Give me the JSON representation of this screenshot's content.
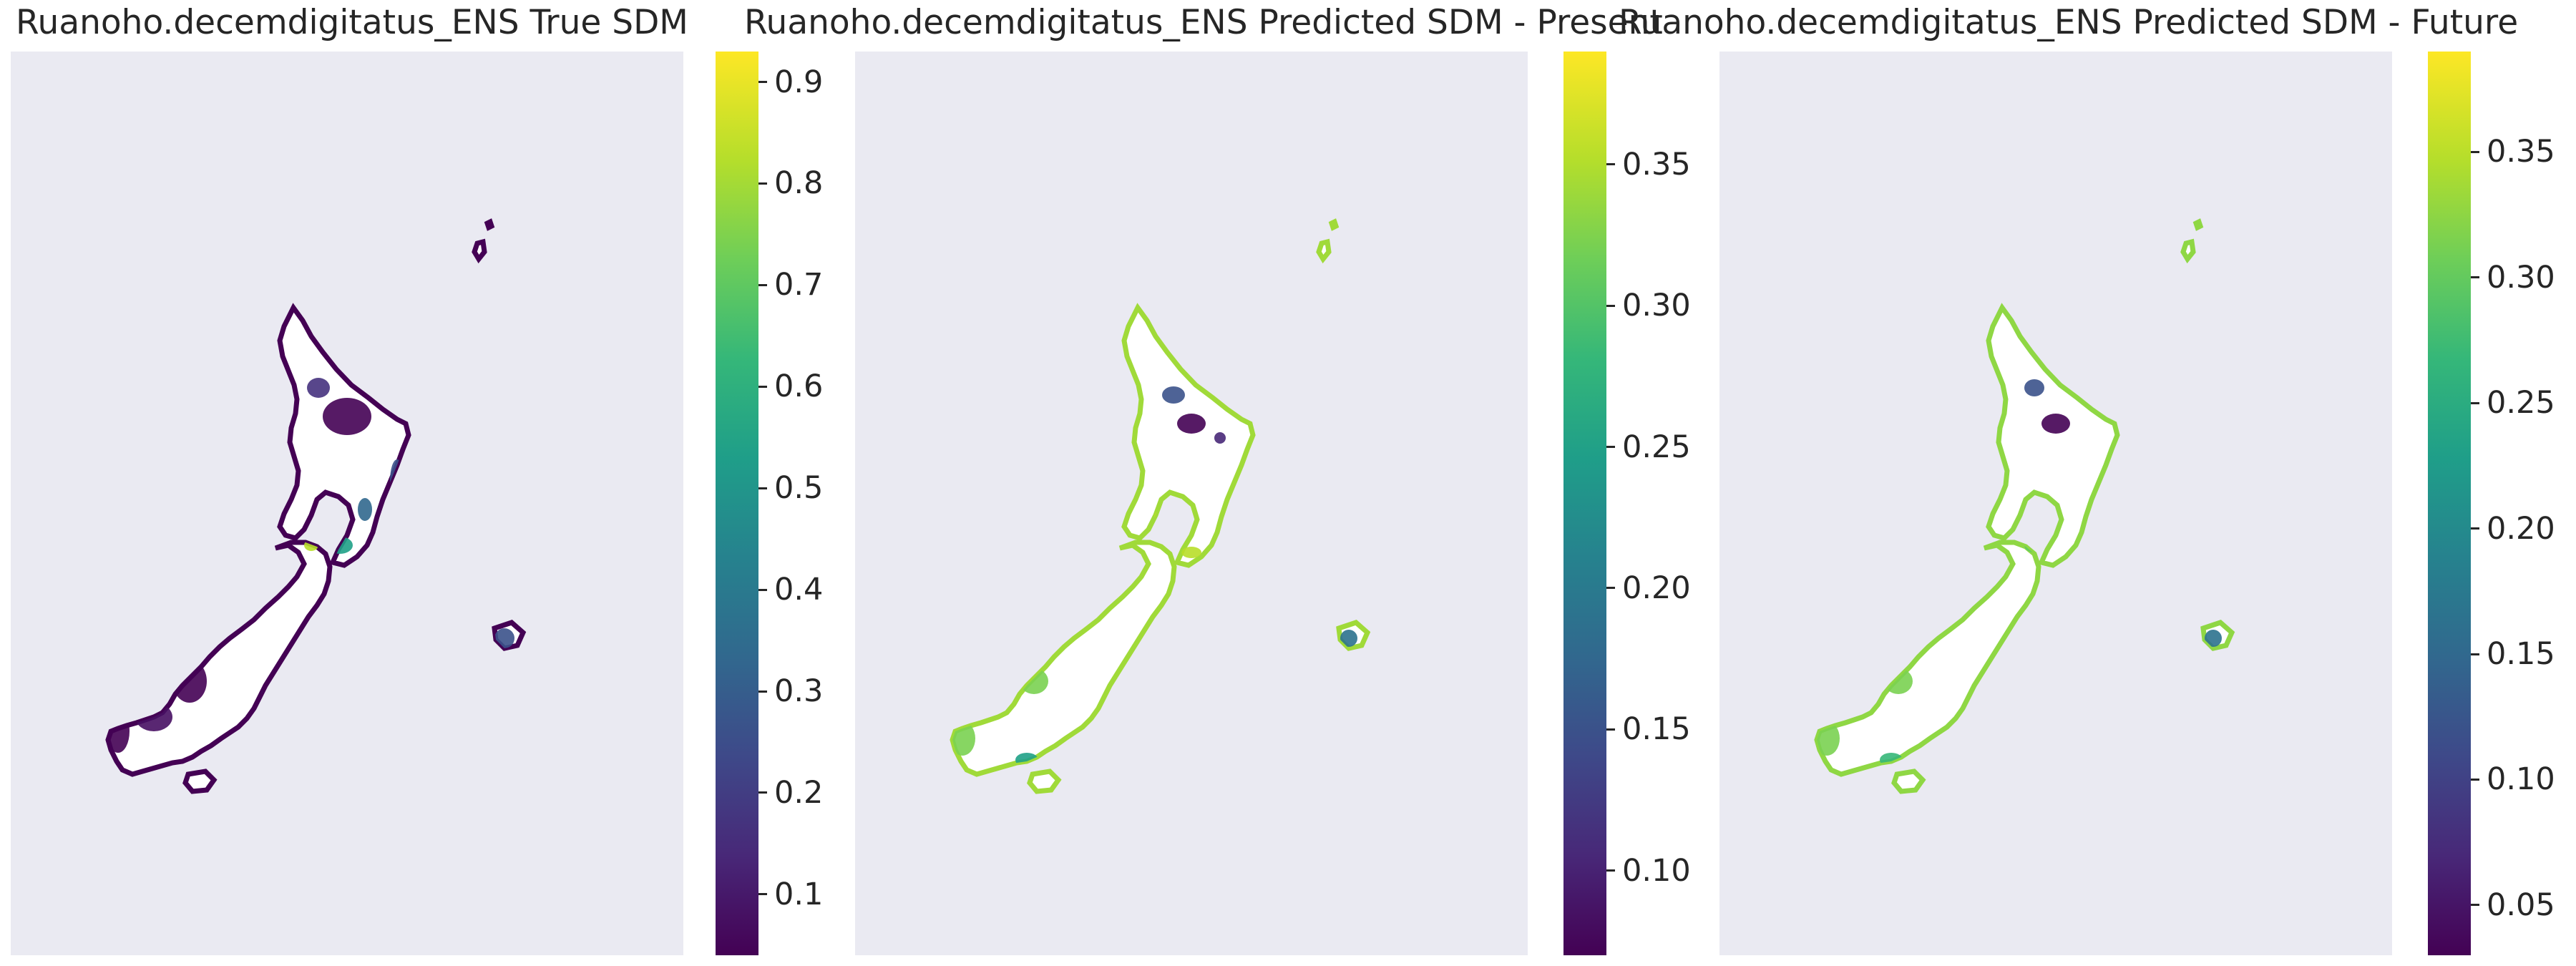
{
  "colormap": "viridis",
  "colors": {
    "map_background": "#eaeaf2",
    "low": "#440154",
    "mid": "#21918c",
    "high": "#fde725"
  },
  "panels": [
    {
      "title": "Ruanoho.decemdigitatus_ENS True SDM",
      "colorbar": {
        "min": 0.04,
        "max": 0.93,
        "ticks": [
          0.1,
          0.2,
          0.3,
          0.4,
          0.5,
          0.6,
          0.7,
          0.8,
          0.9
        ],
        "tick_labels": [
          "0.1",
          "0.2",
          "0.3",
          "0.4",
          "0.5",
          "0.6",
          "0.7",
          "0.8",
          "0.9"
        ]
      }
    },
    {
      "title": "Ruanoho.decemdigitatus_ENS Predicted SDM - Present",
      "colorbar": {
        "min": 0.07,
        "max": 0.39,
        "ticks": [
          0.1,
          0.15,
          0.2,
          0.25,
          0.3,
          0.35
        ],
        "tick_labels": [
          "0.10",
          "0.15",
          "0.20",
          "0.25",
          "0.30",
          "0.35"
        ]
      }
    },
    {
      "title": "Ruanoho.decemdigitatus_ENS Predicted SDM - Future",
      "colorbar": {
        "min": 0.03,
        "max": 0.39,
        "ticks": [
          0.05,
          0.1,
          0.15,
          0.2,
          0.25,
          0.3,
          0.35
        ],
        "tick_labels": [
          "0.05",
          "0.10",
          "0.15",
          "0.20",
          "0.25",
          "0.30",
          "0.35"
        ]
      }
    }
  ]
}
